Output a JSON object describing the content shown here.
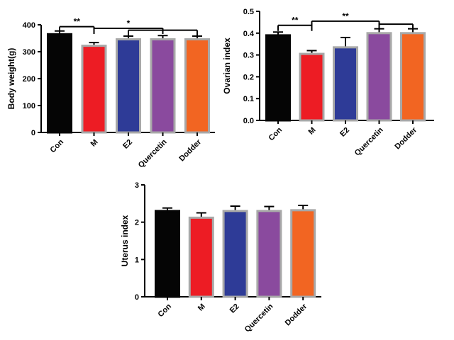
{
  "chart_data": [
    {
      "type": "bar",
      "title": "",
      "xlabel": "",
      "ylabel": "Body weight(g)",
      "categories": [
        "Con",
        "M",
        "E2",
        "Quercetin",
        "Dodder"
      ],
      "values": [
        365,
        322,
        346,
        346,
        346
      ],
      "errors": [
        12,
        12,
        12,
        14,
        12
      ],
      "ylim": [
        0,
        400
      ],
      "yticks": [
        0,
        100,
        200,
        300,
        400
      ],
      "colors": [
        "#050505",
        "#ed1c24",
        "#2e3b97",
        "#8a4a9e",
        "#f26522"
      ],
      "edgecolors": [
        "#050505",
        "#a8a8a8",
        "#a8a8a8",
        "#a8a8a8",
        "#a8a8a8"
      ],
      "significance": [
        {
          "from": 0,
          "to": 1,
          "label": "**",
          "y": 393
        },
        {
          "from": 1,
          "to": 3,
          "label": "*",
          "y": 387
        },
        {
          "from": 2,
          "to": 4,
          "label": "",
          "y": 380
        }
      ]
    },
    {
      "type": "bar",
      "title": "",
      "xlabel": "",
      "ylabel": "Ovarian index",
      "categories": [
        "Con",
        "M",
        "E2",
        "Quercetin",
        "Dodder"
      ],
      "values": [
        0.39,
        0.305,
        0.335,
        0.4,
        0.4
      ],
      "errors": [
        0.015,
        0.015,
        0.045,
        0.02,
        0.02
      ],
      "ylim": [
        0,
        0.5
      ],
      "yticks": [
        "0.0",
        "0.1",
        "0.2",
        "0.3",
        "0.4",
        "0.5"
      ],
      "colors": [
        "#050505",
        "#ed1c24",
        "#2e3b97",
        "#8a4a9e",
        "#f26522"
      ],
      "edgecolors": [
        "#050505",
        "#a8a8a8",
        "#a8a8a8",
        "#a8a8a8",
        "#a8a8a8"
      ],
      "significance": [
        {
          "from": 0,
          "to": 1,
          "label": "**",
          "y": 0.436
        },
        {
          "from": 1,
          "to": 3,
          "label": "**",
          "y": 0.455
        },
        {
          "from": 3,
          "to": 4,
          "label": "",
          "y": 0.441
        }
      ]
    },
    {
      "type": "bar",
      "title": "",
      "xlabel": "",
      "ylabel": "Uterus index",
      "categories": [
        "Con",
        "M",
        "E2",
        "Quercetin",
        "Dodder"
      ],
      "values": [
        2.3,
        2.12,
        2.3,
        2.3,
        2.32
      ],
      "errors": [
        0.08,
        0.13,
        0.13,
        0.12,
        0.13
      ],
      "ylim": [
        0,
        3
      ],
      "yticks": [
        0,
        1,
        2,
        3
      ],
      "colors": [
        "#050505",
        "#ed1c24",
        "#2e3b97",
        "#8a4a9e",
        "#f26522"
      ],
      "edgecolors": [
        "#050505",
        "#a8a8a8",
        "#a8a8a8",
        "#a8a8a8",
        "#a8a8a8"
      ],
      "significance": []
    }
  ]
}
